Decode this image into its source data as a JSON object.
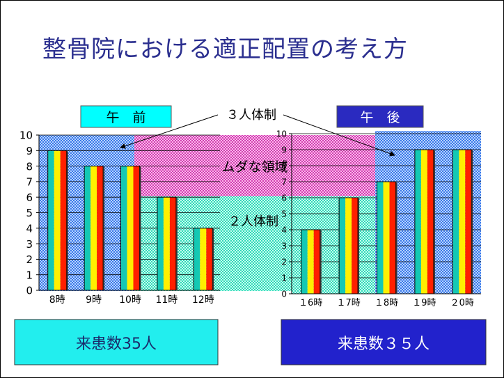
{
  "slide": {
    "title": "整骨院における適正配置の考え方"
  },
  "labels": {
    "am_tag": "午　前",
    "pm_tag": "午　後",
    "three_staff": "３人体制",
    "waste_zone": "ムダな領域",
    "two_staff": "２人体制"
  },
  "totals": {
    "am": "来患数35人",
    "pm": "来患数３５人"
  },
  "colors": {
    "title": "#2b2f8f",
    "am_tag_bg": "#00ffff",
    "pm_tag_bg": "#2a2ac0",
    "pm_tag_text": "#ffffff",
    "am_total_bg": "#22eeee",
    "pm_total_bg": "#2222cc",
    "pm_total_text": "#ffffff",
    "zone_blue": "#7fb0ff",
    "zone_pink": "#e060c0",
    "zone_teal": "#40e0c0",
    "bar_stripes": [
      "#14c8b4",
      "#fff000",
      "#ff2000"
    ]
  },
  "chart_data": [
    {
      "type": "bar",
      "categories": [
        "8時",
        "9時",
        "10時",
        "11時",
        "12時"
      ],
      "values": [
        9,
        8,
        8,
        6,
        4
      ],
      "ylim": [
        0,
        10
      ],
      "yticks": [
        "0",
        "1",
        "2",
        "3",
        "4",
        "5",
        "6",
        "7",
        "8",
        "9",
        "10"
      ],
      "bands": [
        {
          "label": "3人体制",
          "from": 6,
          "to": 10
        },
        {
          "label": "2人体制",
          "from": 0,
          "to": 6
        }
      ]
    },
    {
      "type": "bar",
      "categories": [
        "１6時",
        "１7時",
        "１8時",
        "１9時",
        "２0時"
      ],
      "values": [
        4,
        6,
        7,
        9,
        9
      ],
      "ylim": [
        0,
        10
      ],
      "yticks": [
        "0",
        "1",
        "2",
        "3",
        "4",
        "5",
        "6",
        "7",
        "8",
        "9",
        "10"
      ],
      "bands": [
        {
          "label": "3人体制",
          "from": 6,
          "to": 10
        },
        {
          "label": "2人体制",
          "from": 0,
          "to": 6
        }
      ]
    }
  ]
}
